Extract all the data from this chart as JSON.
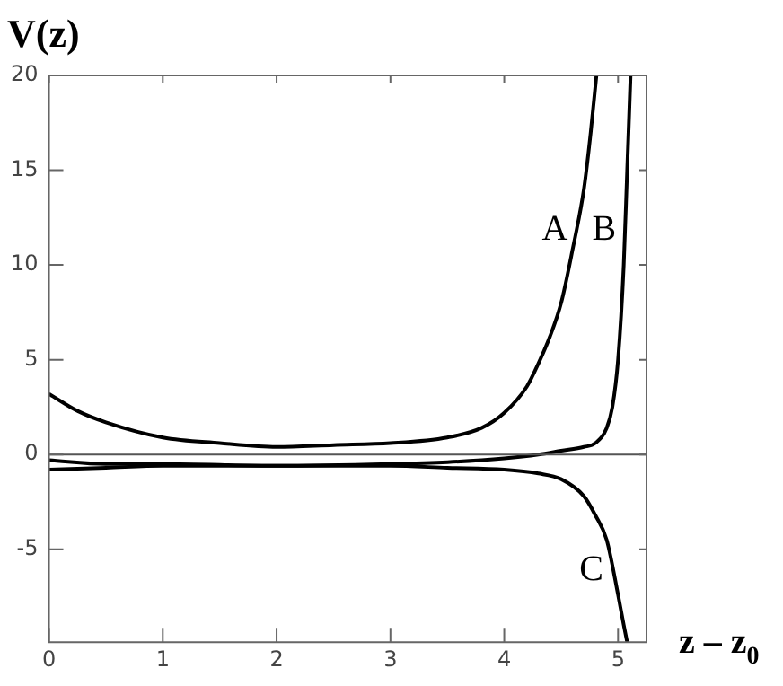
{
  "chart_data": {
    "type": "line",
    "ylabel": "V(z)",
    "xlabel": "z – z$_{0}$",
    "xlim": [
      0,
      5.25
    ],
    "ylim": [
      -9.9,
      20
    ],
    "xticks": [
      0,
      1,
      2,
      3,
      4,
      5
    ],
    "yticks": [
      -5,
      0,
      5,
      10,
      15,
      20
    ],
    "grid": false,
    "legend": false,
    "marker": "none",
    "line_style": "solid",
    "series": [
      {
        "name": "A",
        "color": "#000000",
        "x": [
          0,
          0.25,
          0.5,
          1,
          1.5,
          2,
          2.5,
          3,
          3.5,
          3.8,
          4,
          4.2,
          4.3,
          4.4,
          4.5,
          4.6,
          4.7,
          4.76,
          4.81
        ],
        "values": [
          3.2,
          2.3,
          1.7,
          0.9,
          0.6,
          0.4,
          0.5,
          0.6,
          0.9,
          1.4,
          2.2,
          3.6,
          4.8,
          6.2,
          8,
          10.8,
          14,
          17,
          20
        ]
      },
      {
        "name": "B",
        "color": "#000000",
        "x": [
          0,
          0.5,
          1,
          2,
          3,
          3.5,
          4,
          4.3,
          4.5,
          4.7,
          4.8,
          4.9,
          4.95,
          5,
          5.05,
          5.08,
          5.11
        ],
        "values": [
          -0.3,
          -0.5,
          -0.5,
          -0.6,
          -0.5,
          -0.4,
          -0.2,
          0,
          0.2,
          0.4,
          0.6,
          1.4,
          2.5,
          5,
          10,
          15,
          20
        ]
      },
      {
        "name": "C",
        "color": "#000000",
        "x": [
          0,
          0.5,
          1,
          2,
          3,
          3.5,
          4,
          4.3,
          4.5,
          4.7,
          4.8,
          4.9,
          5,
          5.05,
          5.08
        ],
        "values": [
          -0.8,
          -0.7,
          -0.6,
          -0.6,
          -0.6,
          -0.7,
          -0.8,
          -1,
          -1.3,
          -2.2,
          -3.2,
          -4.5,
          -7.4,
          -9,
          -9.9
        ]
      }
    ],
    "ref_lines": [
      {
        "axis": "y",
        "value": 0,
        "color": "#555555"
      }
    ]
  }
}
